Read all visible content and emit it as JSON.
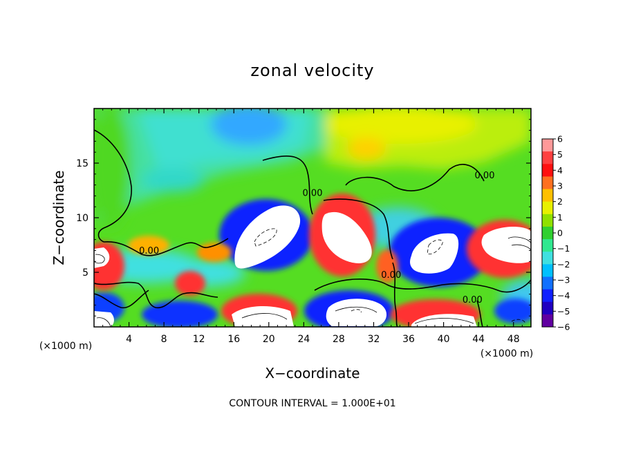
{
  "chart_data": {
    "type": "heatmap",
    "title": "zonal velocity",
    "xlabel": "X−coordinate",
    "ylabel": "Z−coordinate",
    "x_unit_left": "(×1000 m)",
    "x_unit_right": "(×1000 m)",
    "xlim": [
      0,
      50
    ],
    "ylim": [
      0,
      20
    ],
    "x_ticks": [
      4,
      8,
      12,
      16,
      20,
      24,
      28,
      32,
      36,
      40,
      44,
      48
    ],
    "y_ticks": [
      5,
      10,
      15
    ],
    "colorbar": {
      "ticks": [
        "6",
        "5",
        "4",
        "3",
        "2",
        "1",
        "0",
        "−1",
        "−2",
        "−3",
        "−4",
        "−5",
        "−6"
      ],
      "colors": [
        "#ff9999",
        "#ff4040",
        "#ff1010",
        "#ff7020",
        "#ffc000",
        "#e8f000",
        "#90e000",
        "#30d030",
        "#30e890",
        "#40e0e0",
        "#00c0ff",
        "#1070ff",
        "#1020ff",
        "#2000c0",
        "#6000a0"
      ]
    },
    "contour_labels": [
      {
        "text": "0.00",
        "x": 6.3,
        "y": 6.7
      },
      {
        "text": "0.00",
        "x": 25.0,
        "y": 12.0
      },
      {
        "text": "0.00",
        "x": 34.0,
        "y": 4.5
      },
      {
        "text": "0.00",
        "x": 43.3,
        "y": 2.2
      },
      {
        "text": "0.00",
        "x": 44.7,
        "y": 13.6
      }
    ],
    "contour_interval": "CONTOUR INTERVAL = 1.000E+01"
  }
}
